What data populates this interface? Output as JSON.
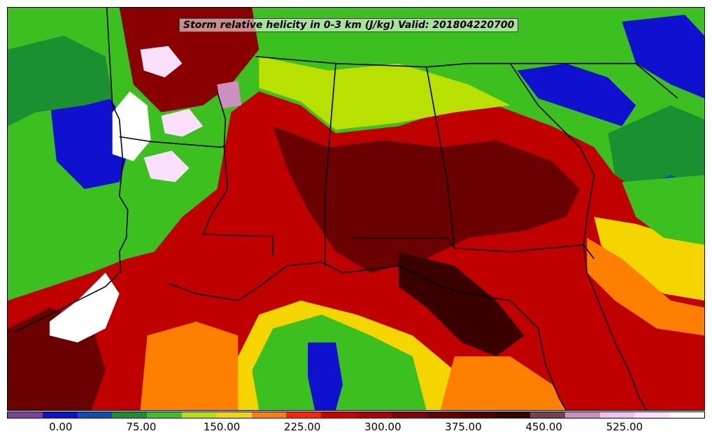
{
  "map": {
    "title": "Storm relative helicity in 0-3 km (J/kg) Valid: 201804220700",
    "variable": "Storm relative helicity in 0-3 km",
    "units": "J/kg",
    "valid_time": "201804220700"
  },
  "colorbar": {
    "colors": [
      "#7f3f9f",
      "#1010d0",
      "#0a4fbf",
      "#1a9030",
      "#3cc020",
      "#b8e000",
      "#f5d500",
      "#ff8000",
      "#ff2000",
      "#d00000",
      "#b00000",
      "#8a0000",
      "#6a0000",
      "#500000",
      "#3a0000",
      "#7a3f50",
      "#cc90c0",
      "#f0c0f0",
      "#fbe0fb",
      "#ffffff"
    ],
    "tick_labels": [
      "0.00",
      "75.00",
      "150.00",
      "225.00",
      "300.00",
      "375.00",
      "450.00",
      "525.00"
    ],
    "tick_values": [
      0,
      75,
      150,
      225,
      300,
      375,
      450,
      525
    ],
    "min": -50,
    "max": 600
  },
  "colors": {
    "background_red": "#c00000",
    "boundary": "#000000"
  }
}
